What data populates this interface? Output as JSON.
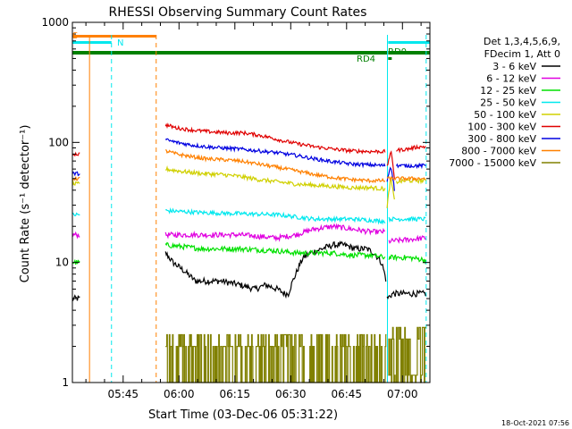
{
  "chart_data": {
    "type": "line",
    "title": "RHESSI Observing Summary Count Rates",
    "xlabel": "Start Time (03-Dec-06 05:31:22)",
    "ylabel": "Count Rate (s⁻¹ detector⁻¹)",
    "yscale": "log",
    "ylim": [
      1,
      1000
    ],
    "xlim_minutes": [
      0,
      96
    ],
    "y_tick_labels": [
      "1",
      "10",
      "100",
      "1000"
    ],
    "x_ticks": [
      {
        "minute": 13.63,
        "label": "05:45"
      },
      {
        "minute": 28.63,
        "label": "06:00"
      },
      {
        "minute": 43.63,
        "label": "06:15"
      },
      {
        "minute": 58.63,
        "label": "06:30"
      },
      {
        "minute": 73.63,
        "label": "06:45"
      },
      {
        "minute": 88.63,
        "label": "07:00"
      }
    ],
    "legend": {
      "header_lines": [
        "Det 1,3,4,5,6,9,",
        "FDecim 1, Att 0"
      ],
      "position": "right",
      "entries": [
        {
          "label": "3 - 6 keV",
          "color": "#000000"
        },
        {
          "label": "6 - 12 keV",
          "color": "#e000e0"
        },
        {
          "label": "12 - 25 keV",
          "color": "#00e000"
        },
        {
          "label": "25 - 50 keV",
          "color": "#00e8ee"
        },
        {
          "label": "50 - 100 keV",
          "color": "#d0d000"
        },
        {
          "label": "100 - 300 keV",
          "color": "#e00000"
        },
        {
          "label": "300 - 800 keV",
          "color": "#0000e0"
        },
        {
          "label": "800 - 7000 keV",
          "color": "#ff8000"
        },
        {
          "label": "7000 - 15000 keV",
          "color": "#808000"
        }
      ]
    },
    "annotations": {
      "S": "S",
      "N": "N",
      "RD4": "RD4",
      "RD0": "RD0",
      "timestamp": "18-Oct-2021 07:56"
    },
    "flags": {
      "saa": {
        "color": "#ff8000",
        "label_key": "S",
        "ranges_min": [
          [
            0,
            22.5
          ]
        ]
      },
      "night": {
        "color": "#00e8ee",
        "label_key": "N",
        "ranges_min": [
          [
            0,
            10.5
          ],
          [
            84.8,
            96
          ]
        ]
      },
      "decimation": {
        "color": "#008000",
        "ranges_min": [
          [
            0,
            84.5
          ]
        ]
      }
    },
    "vlines_min": [
      {
        "minute": 4.6,
        "color": "#ff8000",
        "style": "solid"
      },
      {
        "minute": 10.5,
        "color": "#00e8ee",
        "style": "dashed"
      },
      {
        "minute": 22.5,
        "color": "#ff8000",
        "style": "dashed"
      },
      {
        "minute": 84.6,
        "color": "#00e8ee",
        "style": "solid"
      },
      {
        "minute": 95.0,
        "color": "#00e8ee",
        "style": "dashed"
      }
    ],
    "series": [
      {
        "name": "3 - 6 keV",
        "color": "#000000",
        "noise": 0.06,
        "segments": [
          {
            "x": [
              0,
              2
            ],
            "y": [
              5,
              5
            ]
          },
          {
            "x": [
              25,
              27,
              29,
              31,
              33,
              35,
              40,
              45,
              49,
              52,
              55,
              57,
              58,
              60,
              62,
              64,
              67,
              70,
              73,
              76,
              79,
              81,
              83,
              84.3
            ],
            "y": [
              12,
              10,
              9,
              8,
              7,
              7,
              7,
              6.5,
              6,
              6.5,
              6,
              5.5,
              5.5,
              8,
              11,
              12,
              13,
              14,
              14,
              13,
              13,
              12,
              10,
              7
            ]
          },
          {
            "x": [
              84.5,
              86,
              90,
              92,
              95
            ],
            "y": [
              5,
              5.5,
              5.5,
              5.5,
              5.5
            ]
          }
        ]
      },
      {
        "name": "6 - 12 keV",
        "color": "#e000e0",
        "noise": 0.05,
        "segments": [
          {
            "x": [
              0,
              2
            ],
            "y": [
              17,
              17
            ]
          },
          {
            "x": [
              25,
              35,
              45,
              55,
              60,
              65,
              70,
              75,
              80,
              84
            ],
            "y": [
              17,
              17,
              17,
              16,
              17,
              19,
              20,
              19,
              18,
              18
            ]
          },
          {
            "x": [
              85,
              90,
              95
            ],
            "y": [
              15,
              15.5,
              16
            ]
          }
        ]
      },
      {
        "name": "12 - 25 keV",
        "color": "#00e000",
        "noise": 0.05,
        "segments": [
          {
            "x": [
              0,
              2
            ],
            "y": [
              10,
              10
            ]
          },
          {
            "x": [
              25,
              35,
              45,
              55,
              60,
              65,
              70,
              75,
              80,
              84
            ],
            "y": [
              14,
              13,
              13,
              12.5,
              12,
              12,
              12,
              11.5,
              11.5,
              11
            ]
          },
          {
            "x": [
              85,
              90,
              95
            ],
            "y": [
              11,
              11,
              10.5
            ]
          }
        ]
      },
      {
        "name": "25 - 50 keV",
        "color": "#00e8ee",
        "noise": 0.04,
        "segments": [
          {
            "x": [
              0,
              2
            ],
            "y": [
              25,
              25
            ]
          },
          {
            "x": [
              25,
              35,
              45,
              55,
              60,
              65,
              70,
              75,
              80,
              84
            ],
            "y": [
              27,
              26,
              25.5,
              25,
              24,
              23,
              23,
              23,
              22.5,
              22
            ]
          },
          {
            "x": [
              85,
              90,
              95
            ],
            "y": [
              23,
              23,
              23
            ]
          }
        ]
      },
      {
        "name": "50 - 100 keV",
        "color": "#d0d000",
        "noise": 0.04,
        "segments": [
          {
            "x": [
              0,
              2
            ],
            "y": [
              45,
              45
            ]
          },
          {
            "x": [
              25,
              30,
              35,
              40,
              45,
              50,
              55,
              60,
              65,
              70,
              75,
              80,
              84
            ],
            "y": [
              60,
              57,
              55,
              54,
              52,
              49,
              47,
              45,
              44,
              43,
              42,
              42,
              41
            ]
          },
          {
            "x": [
              84.5,
              85.5,
              86.5
            ],
            "y": [
              28,
              50,
              32
            ]
          },
          {
            "x": [
              87,
              90,
              95
            ],
            "y": [
              47,
              48,
              48
            ]
          }
        ]
      },
      {
        "name": "100 - 300 keV",
        "color": "#e00000",
        "noise": 0.035,
        "segments": [
          {
            "x": [
              0,
              2
            ],
            "y": [
              80,
              80
            ]
          },
          {
            "x": [
              25,
              28,
              31,
              34,
              38,
              42,
              46,
              50,
              53,
              56,
              60,
              65,
              70,
              75,
              80,
              84
            ],
            "y": [
              140,
              132,
              128,
              125,
              122,
              120,
              120,
              115,
              110,
              104,
              98,
              92,
              88,
              85,
              84,
              84
            ]
          },
          {
            "x": [
              84.5,
              85.5,
              86.5
            ],
            "y": [
              62,
              84,
              50
            ]
          },
          {
            "x": [
              87,
              90,
              93,
              95
            ],
            "y": [
              86,
              88,
              92,
              92
            ]
          }
        ]
      },
      {
        "name": "300 - 800 keV",
        "color": "#0000e0",
        "noise": 0.035,
        "segments": [
          {
            "x": [
              0,
              2
            ],
            "y": [
              55,
              55
            ]
          },
          {
            "x": [
              25,
              28,
              32,
              36,
              40,
              45,
              50,
              55,
              60,
              65,
              70,
              75,
              80,
              84
            ],
            "y": [
              105,
              100,
              95,
              92,
              90,
              88,
              85,
              82,
              78,
              73,
              69,
              66,
              65,
              64
            ]
          },
          {
            "x": [
              84.5,
              85.5,
              86.5
            ],
            "y": [
              48,
              64,
              40
            ]
          },
          {
            "x": [
              87,
              90,
              95
            ],
            "y": [
              64,
              64,
              64
            ]
          }
        ]
      },
      {
        "name": "800 - 7000 keV",
        "color": "#ff8000",
        "noise": 0.035,
        "segments": [
          {
            "x": [
              0,
              2
            ],
            "y": [
              50,
              50
            ]
          },
          {
            "x": [
              25,
              28,
              32,
              36,
              40,
              45,
              50,
              55,
              60,
              65,
              70,
              75,
              80,
              84
            ],
            "y": [
              85,
              80,
              76,
              73,
              72,
              70,
              66,
              62,
              58,
              54,
              51,
              49,
              48,
              48
            ]
          },
          {
            "x": [
              84.5,
              95
            ],
            "y": [
              50,
              50
            ]
          }
        ]
      },
      {
        "name": "7000 - 15000 keV",
        "color": "#808000",
        "noise": 0.0,
        "type": "steps",
        "segments": [
          {
            "x": [
              25,
              84.3
            ],
            "y": [
              2,
              2
            ]
          },
          {
            "x": [
              84.8,
              95
            ],
            "y": [
              2.3,
              2.3
            ]
          }
        ]
      }
    ]
  }
}
